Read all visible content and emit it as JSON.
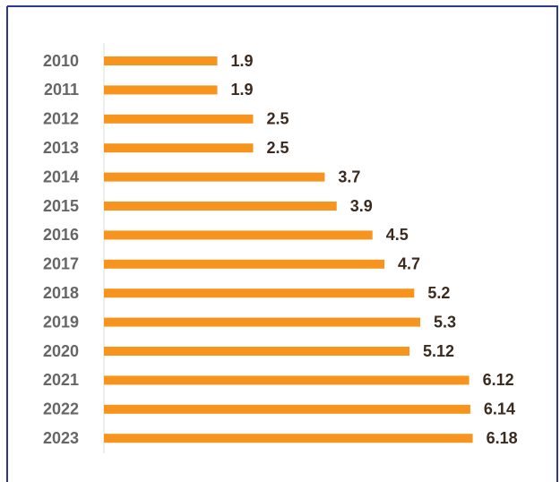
{
  "chart_data": {
    "type": "bar",
    "orientation": "horizontal",
    "categories": [
      "2010",
      "2011",
      "2012",
      "2013",
      "2014",
      "2015",
      "2016",
      "2017",
      "2018",
      "2019",
      "2020",
      "2021",
      "2022",
      "2023"
    ],
    "values": [
      1.9,
      1.9,
      2.5,
      2.5,
      3.7,
      3.9,
      4.5,
      4.7,
      5.2,
      5.3,
      5.12,
      6.12,
      6.14,
      6.18
    ],
    "color": "#f7941d"
  }
}
